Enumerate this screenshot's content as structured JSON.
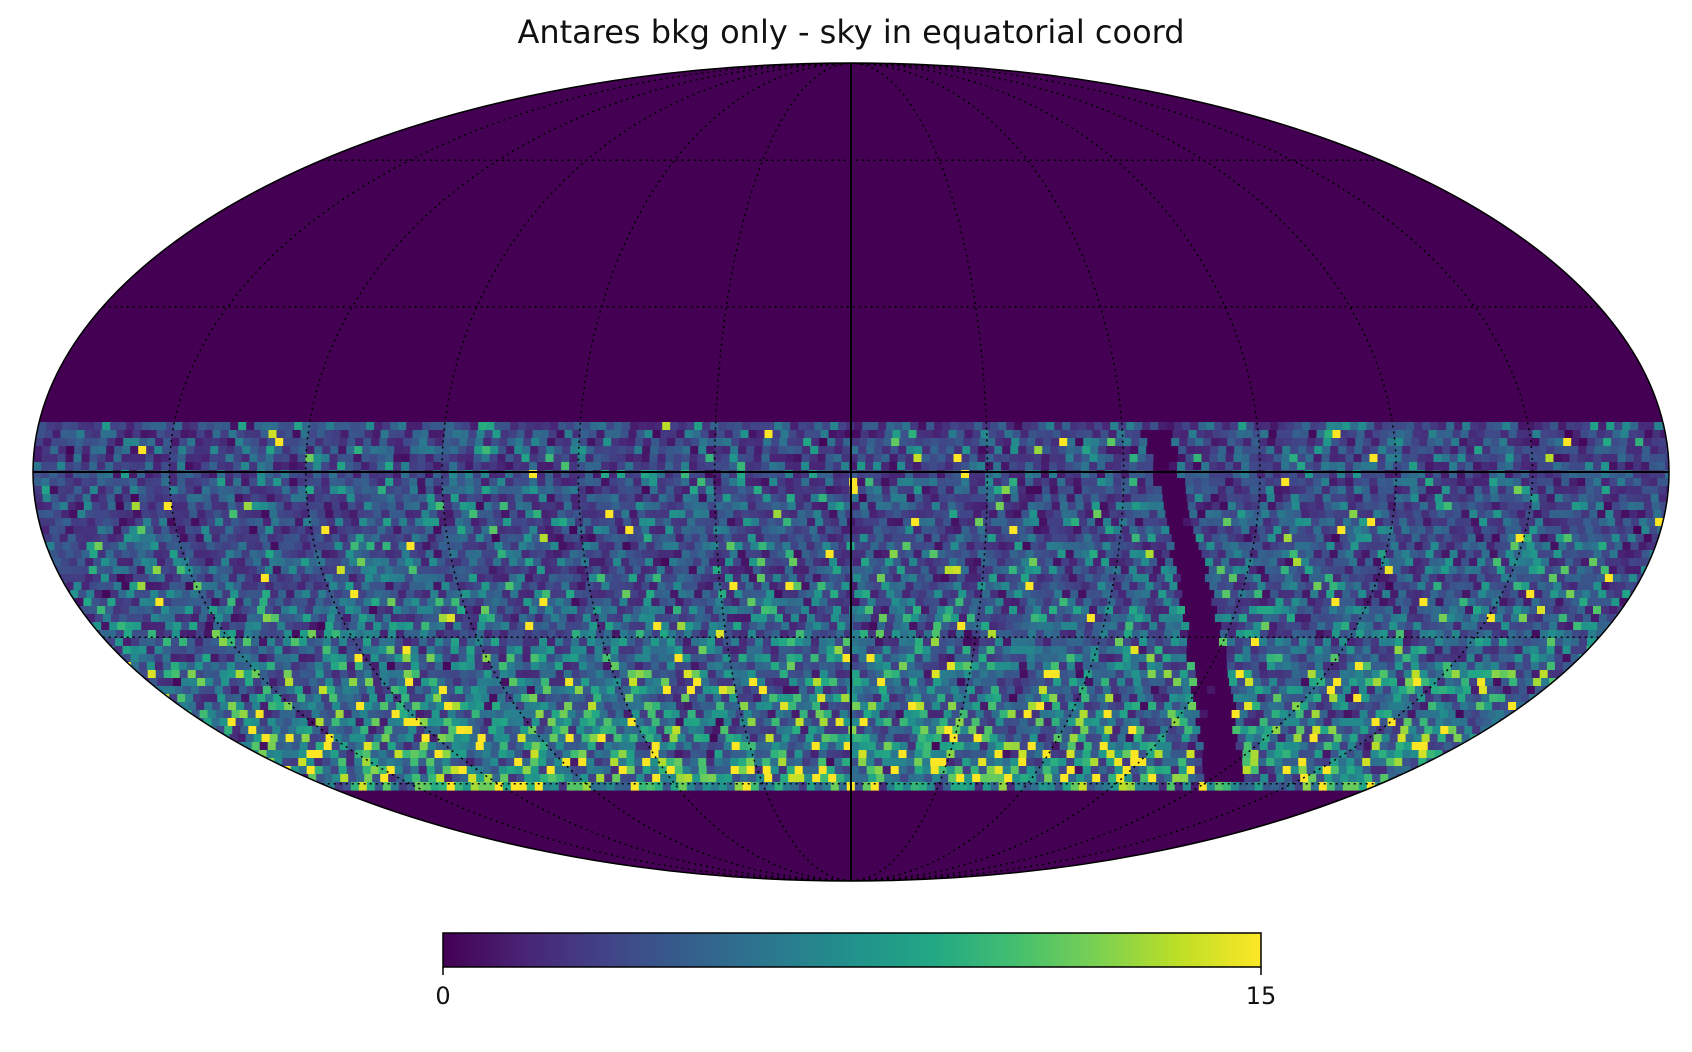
{
  "chart_data": {
    "type": "heatmap",
    "title": "Antares bkg only - sky in equatorial coord",
    "projection": "mollweide",
    "coordinate_system": "equatorial",
    "graticule": {
      "style": "dotted",
      "color": "#000000",
      "meridian_spacing_deg": 30,
      "parallel_spacing_deg": 30,
      "central_meridian_line": "solid",
      "equator_line": "solid"
    },
    "colormap": "viridis",
    "colorbar": {
      "orientation": "horizontal",
      "placement": "bottom",
      "min": 0,
      "max": 15,
      "tick_labels": [
        "0",
        "15"
      ]
    },
    "background_fill_value": 0,
    "background_color": "#440154",
    "filled_declination_band_deg": [
      -60,
      9
    ],
    "low_count_strip": {
      "description": "near-zero count curved strip",
      "dec_range_deg": [
        -60,
        7
      ]
    },
    "count_trend": "counts increase toward southern (lower) edge of filled band",
    "peak_value": 15
  }
}
